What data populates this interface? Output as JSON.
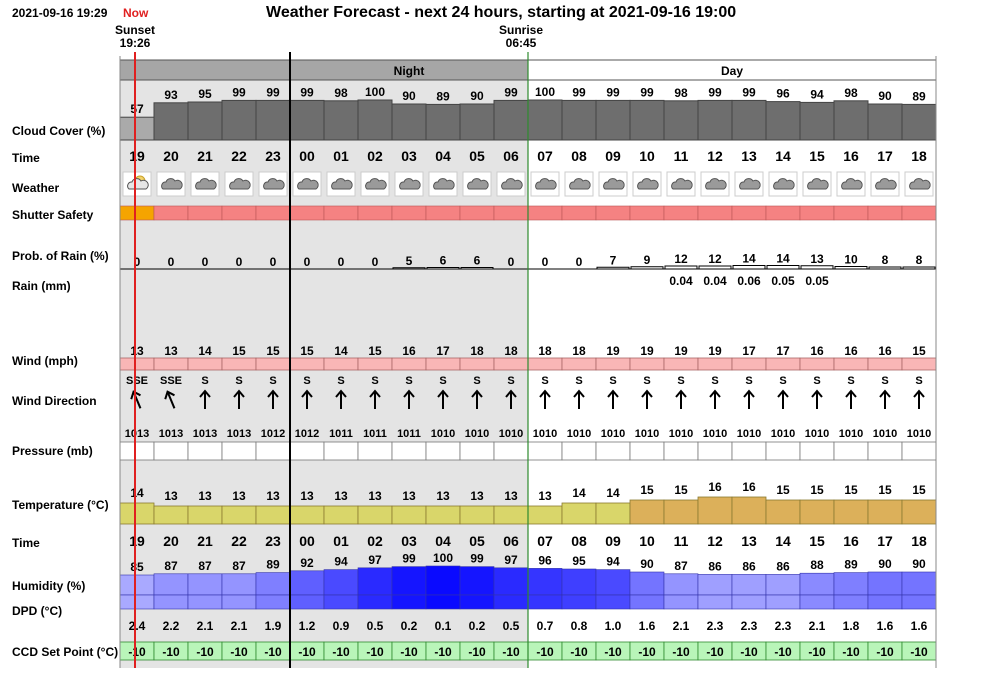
{
  "header": {
    "timestamp": "2021-09-16 19:29",
    "now_label": "Now",
    "title": "Weather Forecast - next 24 hours, starting at 2021-09-16 19:00"
  },
  "markers": {
    "sunset_label": "Sunset",
    "sunset_time": "19:26",
    "sunrise_label": "Sunrise",
    "sunrise_time": "06:45"
  },
  "bands": {
    "night": "Night",
    "day": "Day"
  },
  "row_labels": {
    "cloud_cover": "Cloud Cover (%)",
    "time": "Time",
    "weather": "Weather",
    "shutter_safety": "Shutter Safety",
    "rain_prob": "Prob. of Rain (%)",
    "rain_mm": "Rain (mm)",
    "wind": "Wind (mph)",
    "wind_direction": "Wind Direction",
    "pressure": "Pressure (mb)",
    "temperature": "Temperature (°C)",
    "time2": "Time",
    "humidity": "Humidity (%)",
    "dpd": "DPD (°C)",
    "ccd": "CCD Set Point (°C)"
  },
  "colors": {
    "night_bg": "#e4e4e4",
    "night_header": "#a6a6a6",
    "day_header": "#ffffff",
    "now_line": "#e02020",
    "night_start_line": "#000000",
    "sunrise_line": "#2e8b2e",
    "cloud_low": "#aaaaaa",
    "cloud_high": "#6e6e6e",
    "shutter_unsafe": "#f58282",
    "shutter_caution": "#f5a400",
    "wind": "#f9b6b6",
    "pressure": "#ffffff",
    "temp_cool": "#d9d66a",
    "temp_warm": "#dcb05a",
    "ccd": "#b9f5b9"
  },
  "chart_data": {
    "type": "table",
    "hours": [
      "19",
      "20",
      "21",
      "22",
      "23",
      "00",
      "01",
      "02",
      "03",
      "04",
      "05",
      "06",
      "07",
      "08",
      "09",
      "10",
      "11",
      "12",
      "13",
      "14",
      "15",
      "16",
      "17",
      "18"
    ],
    "cloud_cover": [
      57,
      93,
      95,
      99,
      99,
      99,
      98,
      100,
      90,
      89,
      90,
      99,
      100,
      99,
      99,
      99,
      98,
      99,
      99,
      96,
      94,
      98,
      90,
      89
    ],
    "weather_icon": [
      "partly-cloudy-night-icon",
      "cloudy-icon",
      "cloudy-icon",
      "cloudy-icon",
      "cloudy-icon",
      "cloudy-icon",
      "cloudy-icon",
      "cloudy-icon",
      "cloudy-icon",
      "cloudy-icon",
      "cloudy-icon",
      "cloudy-icon",
      "cloudy-icon",
      "cloudy-icon",
      "cloudy-icon",
      "cloudy-icon",
      "cloudy-icon",
      "cloudy-icon",
      "cloudy-icon",
      "cloudy-icon",
      "cloudy-icon",
      "cloudy-icon",
      "cloudy-icon",
      "cloudy-icon"
    ],
    "shutter_safety": [
      "caution",
      "unsafe",
      "unsafe",
      "unsafe",
      "unsafe",
      "unsafe",
      "unsafe",
      "unsafe",
      "unsafe",
      "unsafe",
      "unsafe",
      "unsafe",
      "unsafe",
      "unsafe",
      "unsafe",
      "unsafe",
      "unsafe",
      "unsafe",
      "unsafe",
      "unsafe",
      "unsafe",
      "unsafe",
      "unsafe",
      "unsafe"
    ],
    "rain_probability": [
      0,
      0,
      0,
      0,
      0,
      0,
      0,
      0,
      5,
      6,
      6,
      0,
      0,
      0,
      7,
      9,
      12,
      12,
      14,
      14,
      13,
      10,
      8,
      8
    ],
    "rain_mm": [
      "",
      "",
      "",
      "",
      "",
      "",
      "",
      "",
      "",
      "",
      "",
      "",
      "",
      "",
      "",
      "",
      "0.04",
      "0.04",
      "0.06",
      "0.05",
      "0.05",
      "",
      "",
      ""
    ],
    "wind_mph": [
      13,
      13,
      14,
      15,
      15,
      15,
      14,
      15,
      16,
      17,
      18,
      18,
      18,
      18,
      19,
      19,
      19,
      19,
      17,
      17,
      16,
      16,
      16,
      15
    ],
    "wind_direction": [
      "SSE",
      "SSE",
      "S",
      "S",
      "S",
      "S",
      "S",
      "S",
      "S",
      "S",
      "S",
      "S",
      "S",
      "S",
      "S",
      "S",
      "S",
      "S",
      "S",
      "S",
      "S",
      "S",
      "S",
      "S"
    ],
    "pressure_mb": [
      1013,
      1013,
      1013,
      1013,
      1012,
      1012,
      1011,
      1011,
      1011,
      1010,
      1010,
      1010,
      1010,
      1010,
      1010,
      1010,
      1010,
      1010,
      1010,
      1010,
      1010,
      1010,
      1010,
      1010
    ],
    "temperature_c": [
      14,
      13,
      13,
      13,
      13,
      13,
      13,
      13,
      13,
      13,
      13,
      13,
      13,
      14,
      14,
      15,
      15,
      16,
      16,
      15,
      15,
      15,
      15,
      15
    ],
    "humidity_pct": [
      85,
      87,
      87,
      87,
      89,
      92,
      94,
      97,
      99,
      100,
      99,
      97,
      96,
      95,
      94,
      90,
      87,
      86,
      86,
      86,
      88,
      89,
      90,
      90
    ],
    "dpd_c": [
      "2.4",
      "2.2",
      "2.1",
      "2.1",
      "1.9",
      "1.2",
      "0.9",
      "0.5",
      "0.2",
      "0.1",
      "0.2",
      "0.5",
      "0.7",
      "0.8",
      "1.0",
      "1.6",
      "2.1",
      "2.3",
      "2.3",
      "2.3",
      "2.1",
      "1.8",
      "1.6",
      "1.6"
    ],
    "ccd_set_point_c": [
      -10,
      -10,
      -10,
      -10,
      -10,
      -10,
      -10,
      -10,
      -10,
      -10,
      -10,
      -10,
      -10,
      -10,
      -10,
      -10,
      -10,
      -10,
      -10,
      -10,
      -10,
      -10,
      -10,
      -10
    ]
  }
}
